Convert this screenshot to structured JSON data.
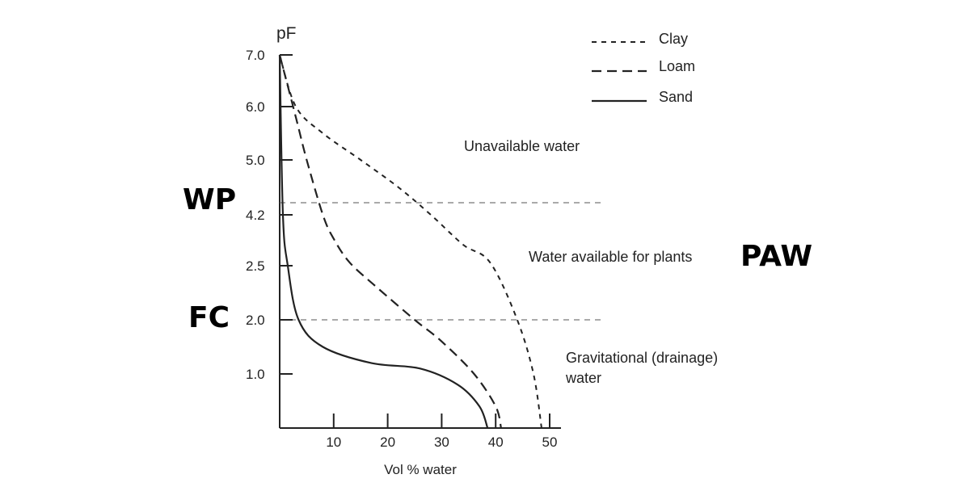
{
  "chart_data": {
    "type": "line",
    "xlabel": "Vol % water",
    "ylabel": "pF",
    "xlim": [
      0,
      55
    ],
    "x_ticks": [
      "10",
      "20",
      "30",
      "40",
      "50"
    ],
    "y_ticks": [
      "7.0",
      "6.0",
      "5.0",
      "4.2",
      "2.5",
      "2.0",
      "1.0"
    ],
    "grid": false,
    "legend_position": "top-right",
    "series": [
      {
        "name": "Clay",
        "style": "dashed-short",
        "points": [
          [
            0,
            "7.0"
          ],
          [
            3,
            "6.0"
          ],
          [
            8,
            "5.5"
          ],
          [
            15,
            "5.0"
          ],
          [
            22,
            "4.6"
          ],
          [
            28,
            "4.2"
          ],
          [
            34,
            "3.2"
          ],
          [
            39,
            "2.6"
          ],
          [
            44,
            "2.0"
          ],
          [
            47,
            "1.0"
          ],
          [
            48.5,
            "0"
          ]
        ]
      },
      {
        "name": "Loam",
        "style": "dashed-long",
        "points": [
          [
            0,
            "7.0"
          ],
          [
            3,
            "5.8"
          ],
          [
            5,
            "5.0"
          ],
          [
            8,
            "4.2"
          ],
          [
            10,
            "3.4"
          ],
          [
            13,
            "2.6"
          ],
          [
            18,
            "2.3"
          ],
          [
            25,
            "2.0"
          ],
          [
            30,
            "1.6"
          ],
          [
            36,
            "1.0"
          ],
          [
            40,
            "0.4"
          ],
          [
            41,
            "0"
          ]
        ]
      },
      {
        "name": "Sand",
        "style": "solid",
        "points": [
          [
            0,
            "7.0"
          ],
          [
            0.6,
            "4.2"
          ],
          [
            1.5,
            "2.5"
          ],
          [
            3.5,
            "2.0"
          ],
          [
            8,
            "1.5"
          ],
          [
            17,
            "1.2"
          ],
          [
            26,
            "1.1"
          ],
          [
            33,
            "0.8"
          ],
          [
            37,
            "0.4"
          ],
          [
            38.5,
            "0"
          ]
        ]
      }
    ],
    "reference_lines": [
      {
        "label": "WP",
        "pF_tick": "4.2"
      },
      {
        "label": "FC",
        "pF_tick": "2.0"
      }
    ],
    "annotations": {
      "unavailable": "Unavailable water",
      "available": "Water available for plants",
      "gravitational_line1": "Gravitational (drainage)",
      "gravitational_line2": "water",
      "wp": "WP",
      "fc": "FC",
      "paw": "PAW"
    }
  }
}
